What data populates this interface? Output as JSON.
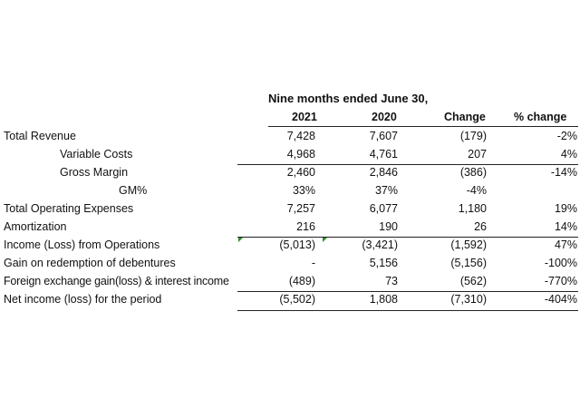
{
  "header": {
    "period": "Nine months ended June 30,",
    "columns": [
      "2021",
      "2020",
      "Change",
      "% change"
    ]
  },
  "rows": [
    {
      "label": "Total Revenue",
      "v2021": "7,428",
      "v2020": "7,607",
      "change": "(179)",
      "pct": "-2%"
    },
    {
      "label": "Variable Costs",
      "v2021": "4,968",
      "v2020": "4,761",
      "change": "207",
      "pct": "4%"
    },
    {
      "label": "Gross Margin",
      "v2021": "2,460",
      "v2020": "2,846",
      "change": "(386)",
      "pct": "-14%"
    },
    {
      "label": "GM%",
      "v2021": "33%",
      "v2020": "37%",
      "change": "-4%",
      "pct": ""
    },
    {
      "label": "Total Operating Expenses",
      "v2021": "7,257",
      "v2020": "6,077",
      "change": "1,180",
      "pct": "19%"
    },
    {
      "label": "Amortization",
      "v2021": "216",
      "v2020": "190",
      "change": "26",
      "pct": "14%"
    },
    {
      "label": "Income (Loss) from Operations",
      "v2021": "(5,013)",
      "v2020": "(3,421)",
      "change": "(1,592)",
      "pct": "47%"
    },
    {
      "label": "Gain on redemption of debentures",
      "v2021": "-",
      "v2020": "5,156",
      "change": "(5,156)",
      "pct": "-100%"
    },
    {
      "label": "Foreign exchange gain(loss) & interest income",
      "v2021": "(489)",
      "v2020": "73",
      "change": "(562)",
      "pct": "-770%"
    },
    {
      "label": "Net income (loss) for the period",
      "v2021": "(5,502)",
      "v2020": "1,808",
      "change": "(7,310)",
      "pct": "-404%"
    }
  ],
  "colors": {
    "text": "#111111",
    "rule": "#222222",
    "marker": "#2e8b2e"
  }
}
